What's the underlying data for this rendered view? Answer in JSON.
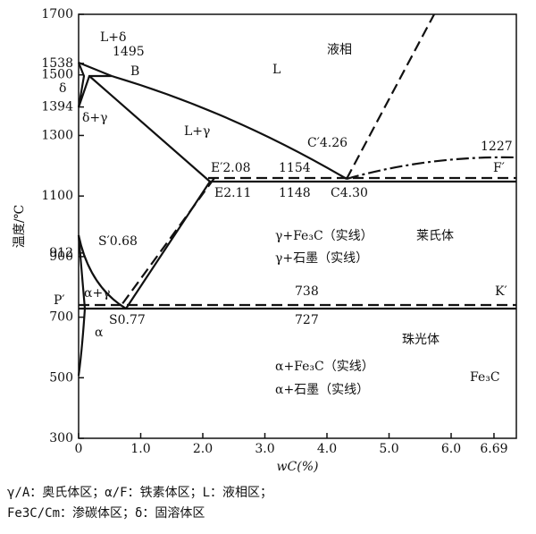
{
  "axes": {
    "y_label": "温度/℃",
    "x_label": "wC(%)",
    "yticks": [
      1700,
      1538,
      1500,
      1394,
      1300,
      1100,
      912,
      900,
      700,
      500,
      300
    ],
    "xticks": [
      0,
      {
        "value": 1,
        "label": "1.0"
      },
      {
        "value": 2,
        "label": "2.0"
      },
      {
        "value": 3,
        "label": "3.0"
      },
      {
        "value": 4,
        "label": "4.0"
      },
      {
        "value": 5,
        "label": "5.0"
      },
      {
        "value": 6,
        "label": "6.0"
      },
      6.69
    ]
  },
  "labels": [
    "L+δ",
    "1495",
    "B",
    "δ",
    "δ+γ",
    "L+γ",
    "L",
    "液相",
    "C′4.26",
    "1227",
    "E′2.08",
    "1154",
    "F′",
    "E2.11",
    "1148",
    "C4.30",
    "γ+Fe₃C（实线）",
    "γ+石墨（实线）",
    "莱氏体",
    "S′0.68",
    "α+γ",
    "738",
    "K′",
    "P′",
    "S0.77",
    "727",
    "α",
    "珠光体",
    "α+Fe₃C（实线）",
    "α+石墨（实线）",
    "Fe₃C"
  ],
  "legend": [
    "γ/A：奥氏体区；α/F：铁素体区；L：液相区；",
    "Fe3C/Cm：渗碳体区；δ：固溶体区"
  ]
}
